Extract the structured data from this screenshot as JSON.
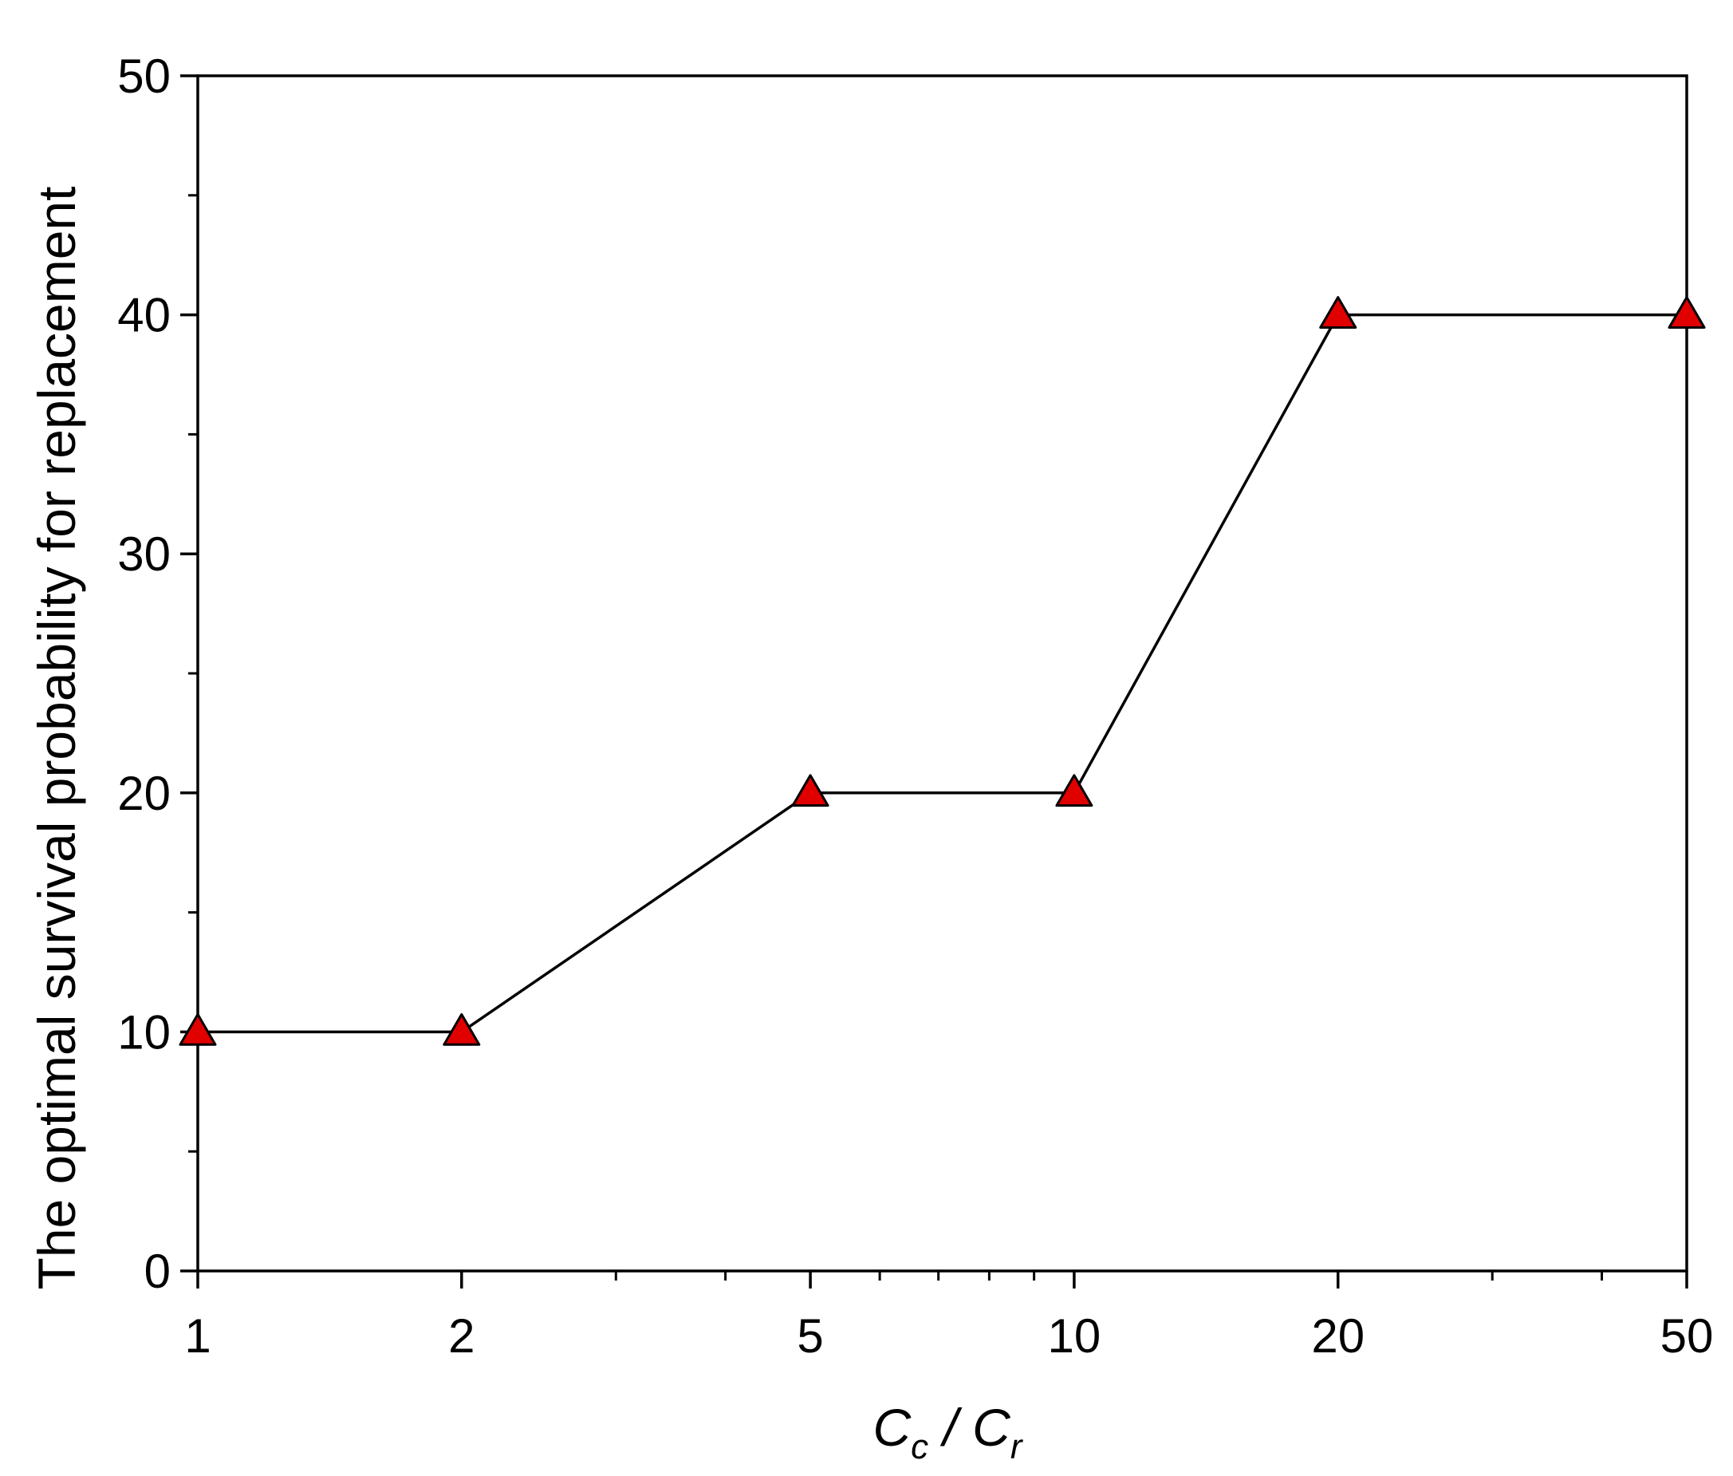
{
  "chart_data": {
    "type": "line",
    "title": "",
    "xlabel": {
      "main1": "C",
      "sub1": "c",
      "sep": " / ",
      "main2": "C",
      "sub2": "r"
    },
    "ylabel": "The optimal survival probability for replacement",
    "x_scale": "log",
    "xlim": [
      1,
      50
    ],
    "ylim": [
      0,
      50
    ],
    "x_ticks": [
      1,
      2,
      5,
      10,
      20,
      50
    ],
    "x_tick_labels": [
      "1",
      "2",
      "5",
      "10",
      "20",
      "50"
    ],
    "y_ticks": [
      0,
      10,
      20,
      30,
      40,
      50
    ],
    "y_tick_labels": [
      "0",
      "10",
      "20",
      "30",
      "40",
      "50"
    ],
    "grid": false,
    "legend": "none",
    "series": [
      {
        "marker": "triangle",
        "marker_color": "#e00000",
        "line_color": "#000000",
        "x": [
          1,
          2,
          5,
          10,
          20,
          50
        ],
        "y": [
          10,
          10,
          20,
          20,
          40,
          40
        ]
      }
    ]
  }
}
